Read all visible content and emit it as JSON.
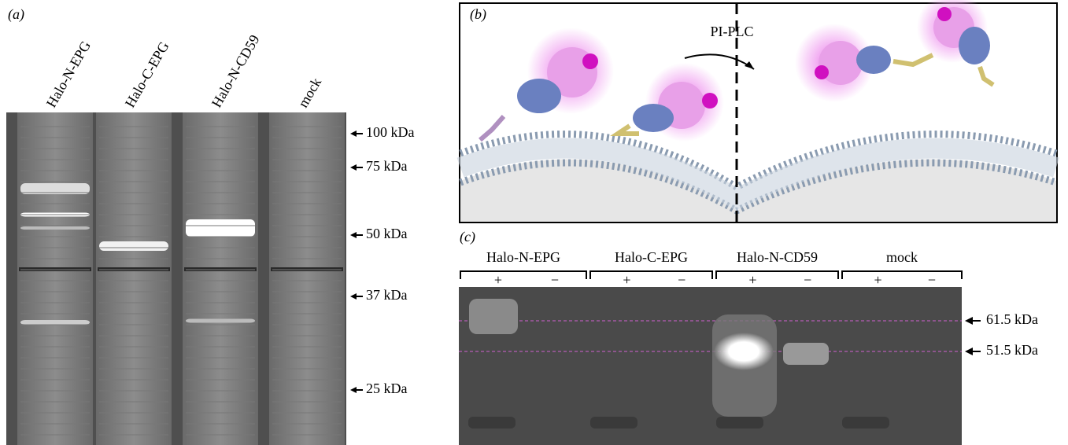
{
  "panel_a": {
    "label": "(a)",
    "lanes": [
      "Halo-N-EPG",
      "Halo-C-EPG",
      "Halo-N-CD59",
      "mock"
    ],
    "markers": [
      "100 kDa",
      "75 kDa",
      "50 kDa",
      "37 kDa",
      "25 kDa"
    ]
  },
  "panel_b": {
    "label": "(b)",
    "enzyme": "PI-PLC"
  },
  "panel_c": {
    "label": "(c)",
    "lanes": [
      {
        "name": "Halo-N-EPG",
        "treatments": [
          "+",
          "−"
        ]
      },
      {
        "name": "Halo-C-EPG",
        "treatments": [
          "+",
          "−"
        ]
      },
      {
        "name": "Halo-N-CD59",
        "treatments": [
          "+",
          "−"
        ]
      },
      {
        "name": "mock",
        "treatments": [
          "+",
          "−"
        ]
      }
    ],
    "markers": [
      "61.5 kDa",
      "51.5 kDa"
    ]
  }
}
